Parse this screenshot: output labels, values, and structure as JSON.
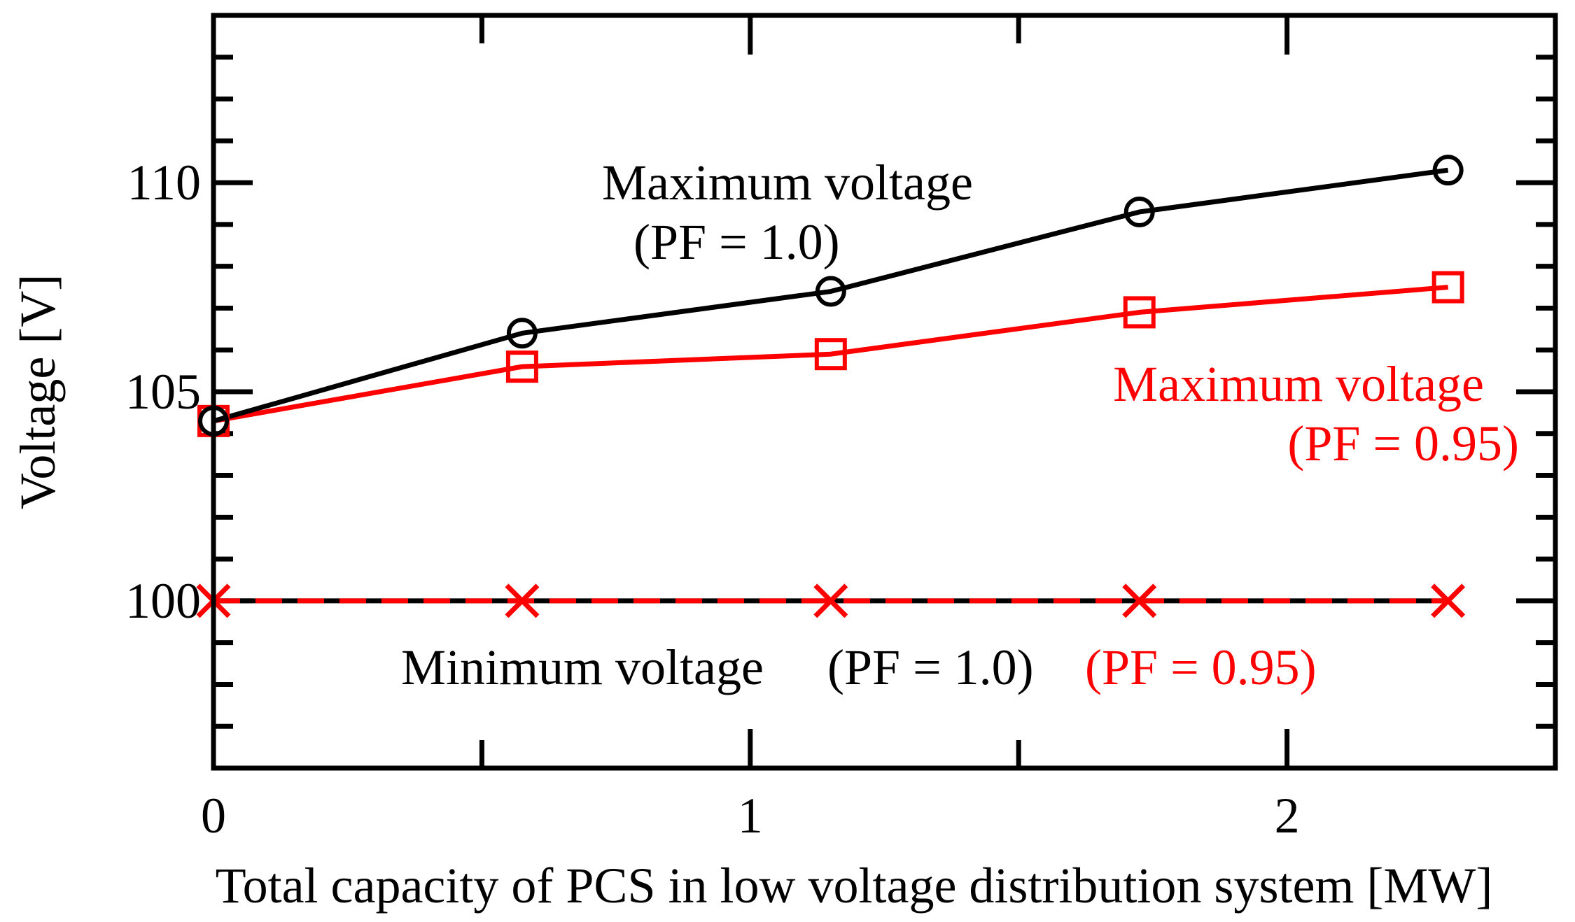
{
  "chart_data": {
    "type": "line",
    "title": "",
    "xlabel": "Total capacity of PCS in low voltage distribution system [MW]",
    "ylabel": "Voltage [V]",
    "xlim": [
      0,
      2.5
    ],
    "ylim": [
      96,
      114
    ],
    "x_ticks": [
      0,
      1,
      2
    ],
    "x_tick_labels": [
      "0",
      "1",
      "2"
    ],
    "x_minor_ticks": [
      0.5,
      1.5
    ],
    "y_ticks": [
      100,
      105,
      110
    ],
    "y_tick_labels": [
      "100",
      "105",
      "110"
    ],
    "y_minor_step": 1,
    "grid": false,
    "legend": "none",
    "series": [
      {
        "key": "max_pf10",
        "x": [
          0,
          0.575,
          1.15,
          1.725,
          2.3
        ],
        "values": [
          104.3,
          106.4,
          107.4,
          109.3,
          110.3
        ],
        "color": "#000000",
        "marker": "circle",
        "dash": "solid"
      },
      {
        "key": "max_pf095",
        "x": [
          0,
          0.575,
          1.15,
          1.725,
          2.3
        ],
        "values": [
          104.3,
          105.6,
          105.9,
          106.9,
          107.5
        ],
        "color": "#ff0000",
        "marker": "square",
        "dash": "solid"
      },
      {
        "key": "min_pf10",
        "x": [
          0,
          0.575,
          1.15,
          1.725,
          2.3
        ],
        "values": [
          100.0,
          100.0,
          100.0,
          100.0,
          100.0
        ],
        "color": "#000000",
        "marker": "none",
        "dash": "solid"
      },
      {
        "key": "min_pf095",
        "x": [
          0,
          0.575,
          1.15,
          1.725,
          2.3
        ],
        "values": [
          100.0,
          100.0,
          100.0,
          100.0,
          100.0
        ],
        "color": "#ff0000",
        "marker": "x",
        "dash": "dashed"
      }
    ],
    "annotations": {
      "max_pf10_line1": "Maximum voltage",
      "max_pf10_line2": "(PF = 1.0)",
      "max_pf095_line1": "Maximum voltage",
      "max_pf095_line2": "(PF = 0.95)",
      "min_label": "Minimum voltage",
      "min_pf10": "(PF = 1.0)",
      "min_pf095": "(PF = 0.95)"
    },
    "colors": {
      "black": "#000000",
      "red": "#ff0000"
    }
  }
}
